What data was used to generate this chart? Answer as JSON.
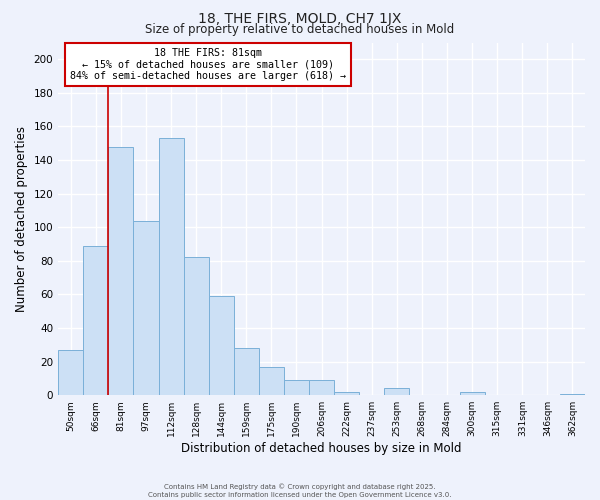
{
  "title": "18, THE FIRS, MOLD, CH7 1JX",
  "subtitle": "Size of property relative to detached houses in Mold",
  "xlabel": "Distribution of detached houses by size in Mold",
  "ylabel": "Number of detached properties",
  "categories": [
    "50sqm",
    "66sqm",
    "81sqm",
    "97sqm",
    "112sqm",
    "128sqm",
    "144sqm",
    "159sqm",
    "175sqm",
    "190sqm",
    "206sqm",
    "222sqm",
    "237sqm",
    "253sqm",
    "268sqm",
    "284sqm",
    "300sqm",
    "315sqm",
    "331sqm",
    "346sqm",
    "362sqm"
  ],
  "values": [
    27,
    89,
    148,
    104,
    153,
    82,
    59,
    28,
    17,
    9,
    9,
    2,
    0,
    4,
    0,
    0,
    2,
    0,
    0,
    0,
    1
  ],
  "bar_color": "#cce0f5",
  "bar_edge_color": "#7ab0d8",
  "ylim": [
    0,
    210
  ],
  "yticks": [
    0,
    20,
    40,
    60,
    80,
    100,
    120,
    140,
    160,
    180,
    200
  ],
  "red_line_index": 2,
  "annotation_text": "18 THE FIRS: 81sqm\n← 15% of detached houses are smaller (109)\n84% of semi-detached houses are larger (618) →",
  "annotation_box_color": "#ffffff",
  "annotation_box_edge_color": "#cc0000",
  "background_color": "#eef2fc",
  "grid_color": "#ffffff",
  "footer_line1": "Contains HM Land Registry data © Crown copyright and database right 2025.",
  "footer_line2": "Contains public sector information licensed under the Open Government Licence v3.0."
}
